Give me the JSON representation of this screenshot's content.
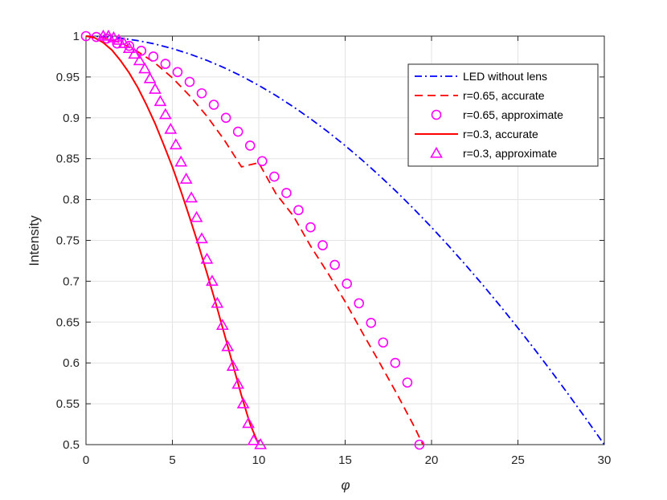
{
  "chart_data": {
    "type": "line",
    "xlabel": "φ",
    "ylabel": "Intensity",
    "xlim": [
      0,
      30
    ],
    "ylim": [
      0.5,
      1
    ],
    "xticks": [
      0,
      5,
      10,
      15,
      20,
      25,
      30
    ],
    "yticks": [
      0.5,
      0.55,
      0.6,
      0.65,
      0.7,
      0.75,
      0.8,
      0.85,
      0.9,
      0.95,
      1
    ],
    "x_tick_labels": [
      "0",
      "5",
      "10",
      "15",
      "20",
      "25",
      "30"
    ],
    "y_tick_labels": [
      "0.5",
      "0.55",
      "0.6",
      "0.65",
      "0.7",
      "0.75",
      "0.8",
      "0.85",
      "0.9",
      "0.95",
      "1"
    ],
    "grid": true,
    "legend_position": "top-right",
    "series": [
      {
        "name": "LED without lens",
        "color": "#0000ff",
        "style": "dash-dot",
        "marker": "none",
        "x": [
          0,
          1,
          2,
          3,
          4,
          5,
          6,
          7,
          8,
          9,
          10,
          11,
          12,
          13,
          14,
          15,
          16,
          17,
          18,
          19,
          20,
          21,
          22,
          23,
          24,
          25,
          26,
          27,
          28,
          29,
          30
        ],
        "y": [
          1.0,
          0.9994,
          0.9976,
          0.9945,
          0.9903,
          0.9848,
          0.9781,
          0.9703,
          0.9613,
          0.9511,
          0.9397,
          0.9272,
          0.9135,
          0.8988,
          0.8829,
          0.866,
          0.848,
          0.829,
          0.809,
          0.788,
          0.766,
          0.7431,
          0.7192,
          0.6946,
          0.6691,
          0.6428,
          0.6157,
          0.5878,
          0.5592,
          0.5299,
          0.5
        ]
      },
      {
        "name": "r=0.65, accurate",
        "color": "#ff0000",
        "style": "dashed",
        "marker": "none",
        "x": [
          0,
          1,
          2,
          3,
          4,
          5,
          6,
          7,
          8,
          9,
          10,
          11,
          12,
          13,
          14,
          15,
          16,
          17,
          18,
          19,
          19.5
        ],
        "y": [
          1.0,
          0.998,
          0.992,
          0.981,
          0.967,
          0.949,
          0.927,
          0.902,
          0.873,
          0.84,
          0.845,
          0.807,
          0.78,
          0.743,
          0.71,
          0.675,
          0.637,
          0.6,
          0.562,
          0.522,
          0.5
        ]
      },
      {
        "name": "r=0.65, approximate",
        "color": "#ff00ff",
        "style": "none",
        "marker": "circle",
        "x": [
          0,
          0.6,
          1.2,
          1.8,
          2.5,
          3.2,
          3.9,
          4.6,
          5.3,
          6.0,
          6.7,
          7.4,
          8.1,
          8.8,
          9.5,
          10.2,
          10.9,
          11.6,
          12.3,
          13.0,
          13.7,
          14.4,
          15.1,
          15.8,
          16.5,
          17.2,
          17.9,
          18.6,
          19.3
        ],
        "y": [
          1.0,
          0.999,
          0.997,
          0.991,
          0.988,
          0.982,
          0.975,
          0.966,
          0.956,
          0.944,
          0.93,
          0.916,
          0.9,
          0.883,
          0.866,
          0.847,
          0.828,
          0.808,
          0.787,
          0.766,
          0.744,
          0.72,
          0.697,
          0.673,
          0.649,
          0.625,
          0.6,
          0.576,
          0.5
        ]
      },
      {
        "name": "r=0.3, accurate",
        "color": "#ff0000",
        "style": "solid",
        "marker": "none",
        "x": [
          0,
          0.5,
          1,
          1.5,
          2,
          2.5,
          3,
          3.5,
          4,
          4.5,
          5,
          5.5,
          6,
          6.5,
          7,
          7.5,
          8,
          8.5,
          9,
          9.5,
          10
        ],
        "y": [
          1.0,
          0.998,
          0.992,
          0.983,
          0.97,
          0.955,
          0.937,
          0.916,
          0.893,
          0.867,
          0.84,
          0.81,
          0.778,
          0.745,
          0.71,
          0.674,
          0.636,
          0.598,
          0.56,
          0.525,
          0.5
        ]
      },
      {
        "name": "r=0.3, approximate",
        "color": "#ff00ff",
        "style": "none",
        "marker": "triangle",
        "x": [
          1.0,
          1.3,
          1.6,
          1.9,
          2.2,
          2.5,
          2.8,
          3.1,
          3.4,
          3.7,
          4.0,
          4.3,
          4.6,
          4.9,
          5.2,
          5.5,
          5.8,
          6.1,
          6.4,
          6.7,
          7.0,
          7.3,
          7.6,
          7.9,
          8.2,
          8.5,
          8.8,
          9.1,
          9.4,
          9.7,
          10.1
        ],
        "y": [
          1.0,
          1.0,
          0.998,
          0.995,
          0.991,
          0.985,
          0.978,
          0.97,
          0.96,
          0.948,
          0.935,
          0.92,
          0.904,
          0.886,
          0.867,
          0.846,
          0.825,
          0.802,
          0.778,
          0.752,
          0.727,
          0.7,
          0.673,
          0.646,
          0.62,
          0.596,
          0.574,
          0.55,
          0.526,
          0.505,
          0.5
        ]
      }
    ]
  }
}
